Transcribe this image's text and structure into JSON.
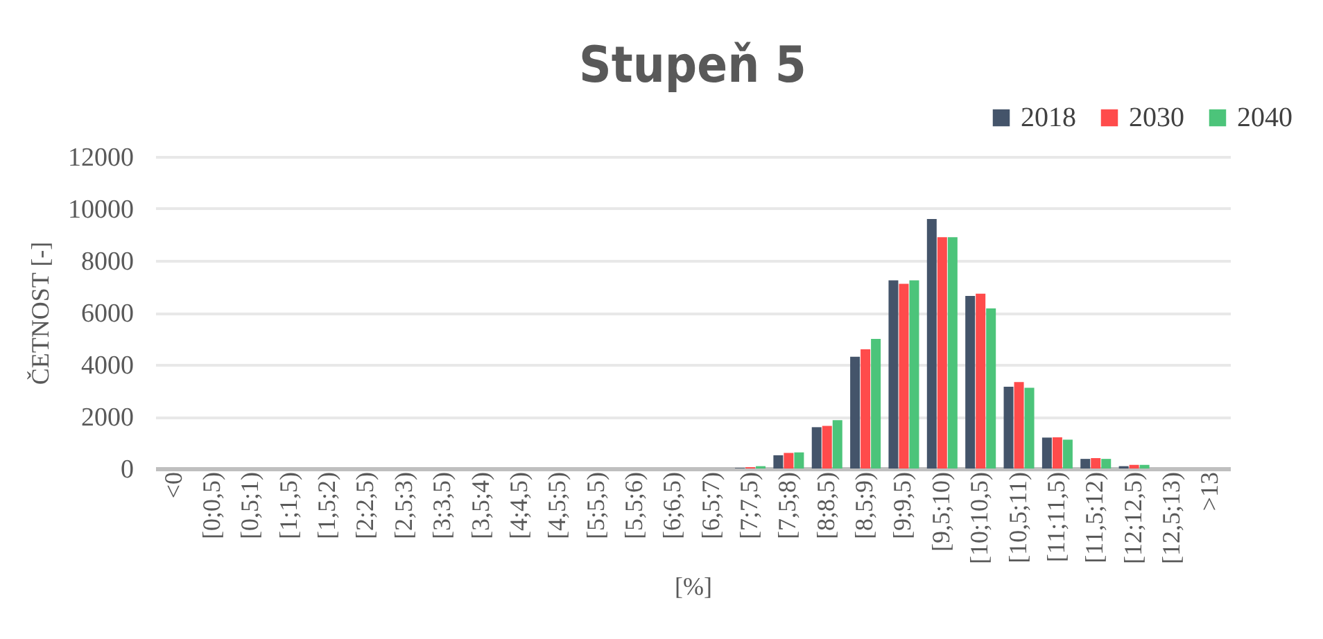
{
  "chart_data": {
    "type": "bar",
    "title": "Stupeň 5",
    "xlabel": "[%]",
    "ylabel": "ČETNOST [-]",
    "categories": [
      "<0",
      "[0;0,5)",
      "[0,5;1)",
      "[1;1,5)",
      "[1,5;2)",
      "[2;2,5)",
      "[2,5;3)",
      "[3;3,5)",
      "[3,5;4)",
      "[4;4,5)",
      "[4,5;5)",
      "[5;5,5)",
      "[5,5;6)",
      "[6;6,5)",
      "[6,5;7)",
      "[7;7,5)",
      "[7,5;8)",
      "[8;8,5)",
      "[8,5;9)",
      "[9;9,5)",
      "[9,5;10)",
      "[10;10,5)",
      "[10,5;11)",
      "[11;11,5)",
      "[11,5;12)",
      "[12;12,5)",
      "[12,5;13)",
      ">13"
    ],
    "series": [
      {
        "name": "2018",
        "color": "#44546a",
        "values": [
          0,
          0,
          0,
          0,
          0,
          0,
          0,
          0,
          0,
          0,
          0,
          0,
          0,
          0,
          0,
          20,
          510,
          1590,
          4300,
          7240,
          9600,
          6640,
          3150,
          1190,
          370,
          90,
          0,
          0
        ]
      },
      {
        "name": "2030",
        "color": "#ff4b4b",
        "values": [
          0,
          0,
          0,
          0,
          0,
          0,
          0,
          0,
          0,
          0,
          0,
          0,
          0,
          0,
          0,
          50,
          600,
          1640,
          4590,
          7110,
          8900,
          6730,
          3330,
          1200,
          400,
          140,
          0,
          0
        ]
      },
      {
        "name": "2040",
        "color": "#4cc47a",
        "values": [
          0,
          0,
          0,
          0,
          0,
          0,
          0,
          0,
          0,
          0,
          0,
          0,
          0,
          0,
          0,
          90,
          620,
          1860,
          4990,
          7240,
          8900,
          6160,
          3110,
          1110,
          370,
          140,
          0,
          0
        ]
      }
    ],
    "ylim": [
      0,
      12000
    ],
    "yticks": [
      0,
      2000,
      4000,
      6000,
      8000,
      10000,
      12000
    ],
    "grid": "y",
    "legend": "top right"
  }
}
